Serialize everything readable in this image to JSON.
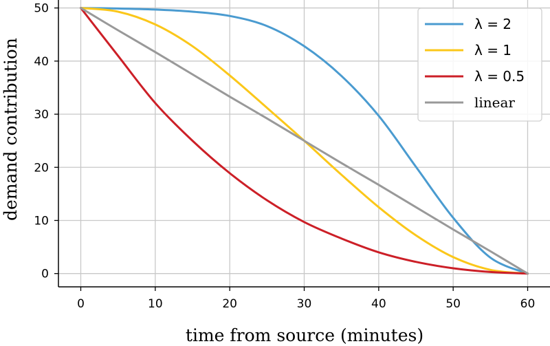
{
  "chart_data": {
    "type": "line",
    "xlabel": "time from source (minutes)",
    "ylabel": "demand contribution",
    "xlim": [
      -3,
      63
    ],
    "ylim": [
      -2.5,
      51.5
    ],
    "xticks": [
      0,
      10,
      20,
      30,
      40,
      50,
      60
    ],
    "yticks": [
      0,
      10,
      20,
      30,
      40,
      50
    ],
    "grid": true,
    "legend_position": "top-right",
    "x": [
      0,
      5,
      10,
      15,
      20,
      25,
      30,
      35,
      40,
      45,
      50,
      55,
      60
    ],
    "series": [
      {
        "name": "λ = 2",
        "color": "#4a9bd0",
        "values": [
          50,
          49.9,
          49.7,
          49.3,
          48.5,
          46.6,
          42.8,
          37.2,
          29.7,
          20.1,
          10.5,
          3.0,
          0
        ]
      },
      {
        "name": "λ = 1",
        "color": "#fbc71a",
        "values": [
          50,
          49.3,
          46.9,
          42.8,
          37.3,
          31.2,
          25.0,
          18.6,
          12.5,
          7.2,
          3.1,
          0.7,
          0
        ]
      },
      {
        "name": "λ = 0.5",
        "color": "#cc1f27",
        "values": [
          50,
          41.0,
          32.1,
          25.0,
          18.9,
          13.8,
          9.7,
          6.6,
          4.0,
          2.2,
          1.0,
          0.3,
          0
        ]
      },
      {
        "name": "linear",
        "color": "#999999",
        "values": [
          50,
          45.8,
          41.7,
          37.5,
          33.3,
          29.2,
          25.0,
          20.8,
          16.7,
          12.5,
          8.3,
          4.2,
          0
        ]
      }
    ]
  }
}
